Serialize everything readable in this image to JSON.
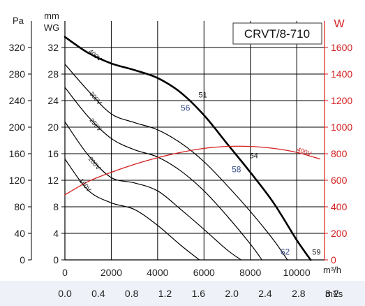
{
  "chart_data": {
    "type": "line",
    "title": "CRVT/8-710",
    "x_primary": {
      "label": "m³/h",
      "range": [
        0,
        11200
      ],
      "ticks": [
        0,
        2000,
        4000,
        6000,
        8000,
        10000
      ],
      "tick_labels": [
        "0",
        "2000",
        "4000",
        "6000",
        "8000",
        "10000"
      ]
    },
    "x_secondary": {
      "label": "m³/s",
      "ticks": [
        0.0,
        0.4,
        0.8,
        1.2,
        1.6,
        2.0,
        2.4,
        2.8,
        3.2
      ],
      "tick_labels": [
        "0.0",
        "0.4",
        "0.8",
        "1.2",
        "1.6",
        "2.0",
        "2.4",
        "2.8",
        "3.2"
      ]
    },
    "y_left_pa": {
      "label": "Pa",
      "ticks": [
        0,
        40,
        80,
        120,
        160,
        200,
        240,
        280,
        320
      ],
      "tick_labels": [
        "0",
        "40",
        "80",
        "120",
        "160",
        "200",
        "240",
        "280",
        "320"
      ]
    },
    "y_left_mmwg": {
      "label_line1": "mm",
      "label_line2": "WG",
      "range": [
        0,
        36
      ],
      "ticks": [
        0,
        4,
        8,
        12,
        16,
        20,
        24,
        28,
        32
      ],
      "tick_labels": [
        "0",
        "4",
        "8",
        "12",
        "16",
        "20",
        "24",
        "28",
        "32"
      ]
    },
    "y_right_w": {
      "label": "W",
      "range": [
        0,
        1800
      ],
      "ticks": [
        0,
        200,
        400,
        600,
        800,
        1000,
        1200,
        1400,
        1600
      ],
      "tick_labels": [
        "0",
        "200",
        "400",
        "600",
        "800",
        "1000",
        "1200",
        "1400",
        "1600"
      ]
    },
    "series": [
      {
        "name": "400V",
        "axis": "mmwg",
        "color": "#000000",
        "bold": true,
        "x": [
          0,
          1000,
          2000,
          3000,
          4000,
          5000,
          6000,
          7000,
          8000,
          9000,
          10000,
          10600
        ],
        "y": [
          33.6,
          31.2,
          29.6,
          28.6,
          27.4,
          25.2,
          21.8,
          17.5,
          13.2,
          8.6,
          3.0,
          0
        ]
      },
      {
        "name": "300V",
        "axis": "mmwg",
        "color": "#000000",
        "bold": false,
        "x": [
          0,
          1000,
          2000,
          3000,
          4000,
          5000,
          6000,
          7000,
          8000,
          9000,
          9600
        ],
        "y": [
          29.5,
          25.5,
          22.0,
          20.7,
          19.6,
          17.6,
          14.8,
          11.2,
          7.3,
          3.0,
          0
        ]
      },
      {
        "name": "250V",
        "axis": "mmwg",
        "color": "#000000",
        "bold": false,
        "x": [
          0,
          1000,
          2000,
          3000,
          4000,
          5000,
          6000,
          7000,
          8000,
          8500
        ],
        "y": [
          26.0,
          21.6,
          18.3,
          16.6,
          15.5,
          13.4,
          10.4,
          6.6,
          2.4,
          0
        ]
      },
      {
        "name": "200V",
        "axis": "mmwg",
        "color": "#000000",
        "bold": false,
        "x": [
          0,
          1000,
          2000,
          3000,
          4000,
          5000,
          6000,
          7000,
          7600
        ],
        "y": [
          20.8,
          15.8,
          12.4,
          11.6,
          10.4,
          7.6,
          4.6,
          1.5,
          0
        ]
      },
      {
        "name": "160V",
        "axis": "mmwg",
        "color": "#000000",
        "bold": false,
        "x": [
          0,
          1000,
          2000,
          3000,
          4000,
          5000,
          5800
        ],
        "y": [
          15.2,
          10.5,
          8.6,
          7.6,
          5.2,
          2.2,
          0
        ]
      },
      {
        "name": "400V",
        "axis": "w",
        "color": "#d42020",
        "bold": false,
        "x": [
          0,
          1000,
          2000,
          3000,
          4000,
          5000,
          6000,
          7000,
          8000,
          9000,
          10000,
          11000
        ],
        "y": [
          490,
          590,
          660,
          720,
          770,
          810,
          840,
          855,
          855,
          840,
          810,
          760
        ]
      }
    ],
    "annotations": [
      {
        "text": "51",
        "x": 5950,
        "y": 24.5,
        "style": "black"
      },
      {
        "text": "56",
        "x": 5200,
        "y": 22.5,
        "style": "blue"
      },
      {
        "text": "54",
        "x": 8150,
        "y": 15.3,
        "style": "black"
      },
      {
        "text": "58",
        "x": 7400,
        "y": 13.2,
        "style": "blue"
      },
      {
        "text": "62",
        "x": 9500,
        "y": 0.8,
        "style": "blue"
      },
      {
        "text": "59",
        "x": 10850,
        "y": 0.8,
        "style": "black"
      }
    ],
    "curve_labels": [
      {
        "text": "400V",
        "x": 1000,
        "y": 31.3,
        "angle": 40
      },
      {
        "text": "300V",
        "x": 1050,
        "y": 25.0,
        "angle": 50
      },
      {
        "text": "250V",
        "x": 1050,
        "y": 21.0,
        "angle": 50
      },
      {
        "text": "200V",
        "x": 1000,
        "y": 15.2,
        "angle": 50
      },
      {
        "text": "160V",
        "x": 600,
        "y": 11.9,
        "angle": 50
      },
      {
        "text": "400V",
        "x": 10000,
        "y": 820,
        "angle": 20,
        "axis": "w"
      }
    ],
    "grid": true,
    "colors": {
      "pressure_curves": "#000000",
      "power_curve": "#d42020",
      "right_axis": "#d42020",
      "grid": "#000000"
    }
  }
}
